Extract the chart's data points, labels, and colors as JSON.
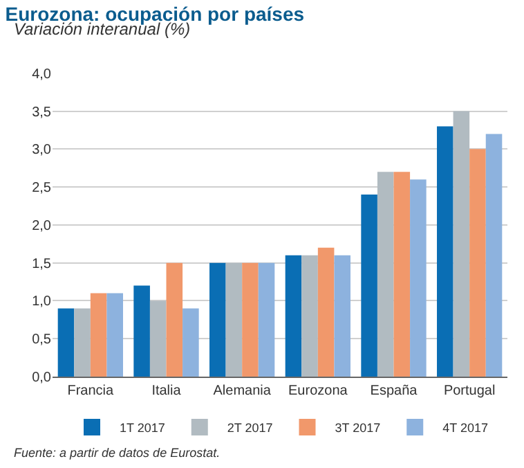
{
  "chart_data": {
    "type": "bar",
    "title": "Eurozona: ocupación por países",
    "subtitle": "Variación interanual (%)",
    "categories": [
      "Francia",
      "Italia",
      "Alemania",
      "Eurozona",
      "España",
      "Portugal"
    ],
    "series": [
      {
        "name": "1T 2017",
        "color": "#0a6eb4",
        "values": [
          0.9,
          1.2,
          1.5,
          1.6,
          2.4,
          3.3
        ]
      },
      {
        "name": "2T 2017",
        "color": "#b1bbc1",
        "values": [
          0.9,
          1.0,
          1.5,
          1.6,
          2.7,
          3.5
        ]
      },
      {
        "name": "3T 2017",
        "color": "#f1986b",
        "values": [
          1.1,
          1.5,
          1.5,
          1.7,
          2.7,
          3.0
        ]
      },
      {
        "name": "4T 2017",
        "color": "#8db2de",
        "values": [
          1.1,
          0.9,
          1.5,
          1.6,
          2.6,
          3.2
        ]
      }
    ],
    "ylim": [
      0,
      4
    ],
    "yticks": [
      {
        "value": 0,
        "label": "0,0"
      },
      {
        "value": 0.5,
        "label": "0,5"
      },
      {
        "value": 1,
        "label": "1,0"
      },
      {
        "value": 1.5,
        "label": "1,5"
      },
      {
        "value": 2,
        "label": "2,0"
      },
      {
        "value": 2.5,
        "label": "2,5"
      },
      {
        "value": 3,
        "label": "3,0"
      },
      {
        "value": 3.5,
        "label": "3,5"
      },
      {
        "value": 4,
        "label": "4,0"
      }
    ],
    "grid": "y",
    "legend": "bottom",
    "annotations": [
      "Fuente: a partir de datos de Eurostat."
    ]
  }
}
